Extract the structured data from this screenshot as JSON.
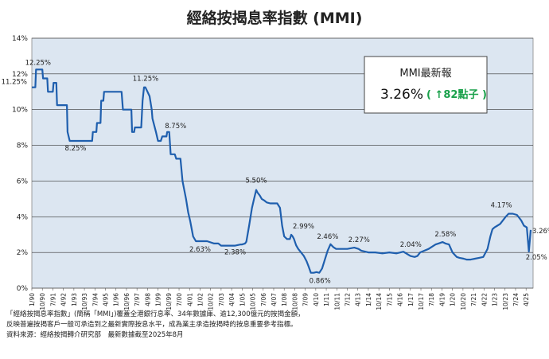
{
  "chart_data": {
    "type": "line",
    "title": "經絡按揭息率指數 (MMI)",
    "xlabel": "",
    "ylabel": "",
    "ylim": [
      0,
      14
    ],
    "y_ticks": [
      "0%",
      "2%",
      "4%",
      "6%",
      "8%",
      "10%",
      "12%",
      "14%"
    ],
    "y_tick_values": [
      0,
      2,
      4,
      6,
      8,
      10,
      12,
      14
    ],
    "x_ticks": [
      "1/90",
      "10/90",
      "7/91",
      "4/92",
      "1/93",
      "10/93",
      "7/94",
      "4/95",
      "1/96",
      "10/96",
      "7/97",
      "4/98",
      "1/99",
      "10/99",
      "7/00",
      "4/01",
      "1/02",
      "10/02",
      "7/03",
      "4/04",
      "1/05",
      "10/05",
      "7/06",
      "4/07",
      "1/08",
      "10/08",
      "7/09",
      "4/10",
      "1/11",
      "10/11",
      "7/12",
      "4/13",
      "1/14",
      "10/14",
      "7/15",
      "4/16",
      "1/17",
      "10/17",
      "7/18",
      "4/19",
      "1/20",
      "10/20",
      "7/21",
      "4/22",
      "1/23",
      "10/23",
      "7/24",
      "4/25"
    ],
    "grid": true,
    "series": [
      {
        "name": "",
        "color": "#1f5fae",
        "x": [
          1990.0,
          1990.25,
          1990.3,
          1990.75,
          1990.8,
          1991.1,
          1991.15,
          1991.5,
          1991.55,
          1991.75,
          1991.8,
          1992.5,
          1992.55,
          1992.7,
          1992.75,
          1994.3,
          1994.35,
          1994.6,
          1994.65,
          1994.9,
          1994.95,
          1995.1,
          1995.15,
          1995.4,
          1995.45,
          1996.4,
          1996.5,
          1996.75,
          1997.1,
          1997.15,
          1997.3,
          1997.35,
          1997.6,
          1997.8,
          1997.9,
          1998.0,
          1998.1,
          1998.25,
          1998.4,
          1998.55,
          1998.6,
          1998.85,
          1999.0,
          1999.2,
          1999.3,
          1999.6,
          1999.65,
          1999.8,
          1999.9,
          2000.2,
          2000.3,
          2000.6,
          2000.75,
          2001.0,
          2001.15,
          2001.3,
          2001.5,
          2001.7,
          2001.85,
          2002.0,
          2002.2,
          2002.5,
          2003.0,
          2003.3,
          2003.5,
          2004.5,
          2004.9,
          2005.0,
          2005.2,
          2005.3,
          2005.5,
          2005.7,
          2005.85,
          2006.0,
          2006.1,
          2006.25,
          2006.4,
          2006.6,
          2006.75,
          2007.0,
          2007.5,
          2007.7,
          2007.85,
          2008.0,
          2008.2,
          2008.4,
          2008.5,
          2008.6,
          2008.7,
          2008.85,
          2009.0,
          2009.2,
          2009.4,
          2009.6,
          2009.75,
          2009.9,
          2010.1,
          2010.3,
          2010.5,
          2010.7,
          2010.9,
          2011.1,
          2011.3,
          2011.5,
          2011.7,
          2012.0,
          2012.5,
          2013.0,
          2013.3,
          2013.5,
          2014.0,
          2014.5,
          2015.0,
          2015.5,
          2016.0,
          2016.5,
          2016.8,
          2017.0,
          2017.3,
          2017.5,
          2017.7,
          2018.0,
          2018.3,
          2018.5,
          2018.8,
          2019.0,
          2019.3,
          2019.5,
          2019.75,
          2020.0,
          2020.3,
          2020.5,
          2020.8,
          2021.0,
          2021.3,
          2021.6,
          2021.9,
          2022.2,
          2022.5,
          2022.7,
          2022.85,
          2023.0,
          2023.2,
          2023.4,
          2023.6,
          2023.8,
          2024.0,
          2024.3,
          2024.6,
          2024.9,
          2025.1,
          2025.3,
          2025.45,
          2025.58
        ],
        "y": [
          11.25,
          11.25,
          12.25,
          12.25,
          11.75,
          11.75,
          11.0,
          11.0,
          11.5,
          11.5,
          10.25,
          10.25,
          8.75,
          8.25,
          8.25,
          8.25,
          8.75,
          8.75,
          9.25,
          9.25,
          10.5,
          10.5,
          11.0,
          11.0,
          11.0,
          11.0,
          10.0,
          10.0,
          10.0,
          8.75,
          8.75,
          9.0,
          9.0,
          9.0,
          10.5,
          11.25,
          11.25,
          11.0,
          10.75,
          10.0,
          9.5,
          8.75,
          8.25,
          8.25,
          8.5,
          8.5,
          8.75,
          8.75,
          7.5,
          7.5,
          7.25,
          7.25,
          6.0,
          5.0,
          4.25,
          3.75,
          2.9,
          2.63,
          2.63,
          2.63,
          2.63,
          2.63,
          2.5,
          2.5,
          2.38,
          2.38,
          2.45,
          2.45,
          2.5,
          2.6,
          3.5,
          4.5,
          5.0,
          5.5,
          5.35,
          5.2,
          5.0,
          4.9,
          4.8,
          4.75,
          4.75,
          4.5,
          3.5,
          2.9,
          2.75,
          2.75,
          2.99,
          2.9,
          2.75,
          2.4,
          2.2,
          2.0,
          1.8,
          1.5,
          1.2,
          0.86,
          0.86,
          0.9,
          0.86,
          1.1,
          1.6,
          2.1,
          2.46,
          2.3,
          2.2,
          2.2,
          2.2,
          2.27,
          2.2,
          2.1,
          2.0,
          2.0,
          1.95,
          2.0,
          1.95,
          2.04,
          1.9,
          1.8,
          1.75,
          1.8,
          2.0,
          2.1,
          2.2,
          2.3,
          2.45,
          2.5,
          2.58,
          2.5,
          2.45,
          2.0,
          1.75,
          1.7,
          1.65,
          1.6,
          1.6,
          1.65,
          1.7,
          1.75,
          2.2,
          2.9,
          3.3,
          3.4,
          3.5,
          3.6,
          3.8,
          4.0,
          4.17,
          4.17,
          4.1,
          3.8,
          3.5,
          3.4,
          2.05,
          3.26
        ]
      }
    ],
    "annotations": [
      {
        "text": "12.25%",
        "x": 1990.5,
        "y": 12.25
      },
      {
        "text": "11.25%",
        "x": 1990.0,
        "y": 11.25
      },
      {
        "text": "8.25%",
        "x": 1992.75,
        "y": 8.25
      },
      {
        "text": "11.25%",
        "x": 1998.0,
        "y": 11.25
      },
      {
        "text": "8.75%",
        "x": 1999.8,
        "y": 8.75
      },
      {
        "text": "2.63%",
        "x": 2002.0,
        "y": 2.63
      },
      {
        "text": "2.38%",
        "x": 2004.5,
        "y": 2.38
      },
      {
        "text": "5.50%",
        "x": 2006.0,
        "y": 5.5
      },
      {
        "text": "2.99%",
        "x": 2008.5,
        "y": 2.99
      },
      {
        "text": "0.86%",
        "x": 2009.9,
        "y": 0.86
      },
      {
        "text": "2.46%",
        "x": 2011.1,
        "y": 2.46
      },
      {
        "text": "2.27%",
        "x": 2013.0,
        "y": 2.27
      },
      {
        "text": "2.04%",
        "x": 2016.8,
        "y": 2.04
      },
      {
        "text": "2.58%",
        "x": 2019.5,
        "y": 2.58
      },
      {
        "text": "4.17%",
        "x": 2023.6,
        "y": 4.17
      },
      {
        "text": "3.26%",
        "x": 2025.58,
        "y": 3.26
      },
      {
        "text": "2.05%",
        "x": 2025.45,
        "y": 2.05
      }
    ],
    "info_box": {
      "title": "MMI最新報",
      "value": "3.26%",
      "change": "( ↑82點子 )"
    }
  },
  "colors": {
    "plot_background": "#dce6f1",
    "line": "#1f5fae",
    "change_text": "#1aa14b"
  },
  "notes": [
    "「經絡按揭息率指數」(簡稱「MMI」)覆蓋全港銀行息率、34年數據庫、逾12,300億元的按揭金額，",
    "反映普遍按揭客戶一般可承造到之最新實際按息水平，成為業主承造按揭時的按息重要參考指標。",
    "資料來源：經絡按揭轉介研究部　最新數據截至2025年8月"
  ]
}
